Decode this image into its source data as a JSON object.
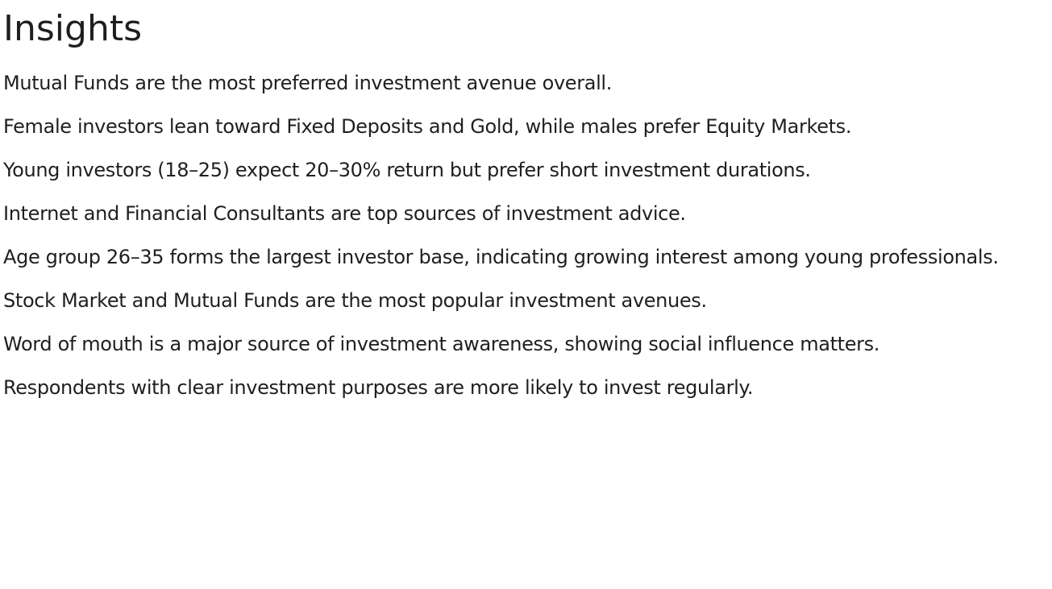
{
  "title": "Insights",
  "insights": [
    "Mutual Funds are the most preferred investment avenue overall.",
    "Female investors lean toward Fixed Deposits and Gold, while males prefer Equity Markets.",
    "Young investors (18–25) expect 20–30% return but prefer short investment durations.",
    "Internet and Financial Consultants are top sources of investment advice.",
    "Age group 26–35 forms the largest investor base, indicating growing interest among young professionals.",
    "Stock Market and Mutual Funds are the most popular investment avenues.",
    "Word of mouth is a major source of investment awareness, showing social influence matters.",
    "Respondents with clear investment purposes are more likely to invest regularly."
  ]
}
